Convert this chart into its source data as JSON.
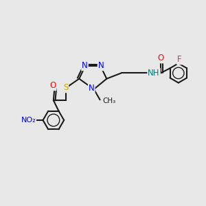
{
  "bg_color": "#e8e8e8",
  "bond_color": "#1a1a1a",
  "bond_width": 1.5,
  "atom_colors": {
    "N": "#0000ff",
    "O": "#ff0000",
    "S": "#ccaa00",
    "F": "#ff1493",
    "NH": "#008080",
    "C": "#1a1a1a"
  },
  "font_size": 8.5
}
